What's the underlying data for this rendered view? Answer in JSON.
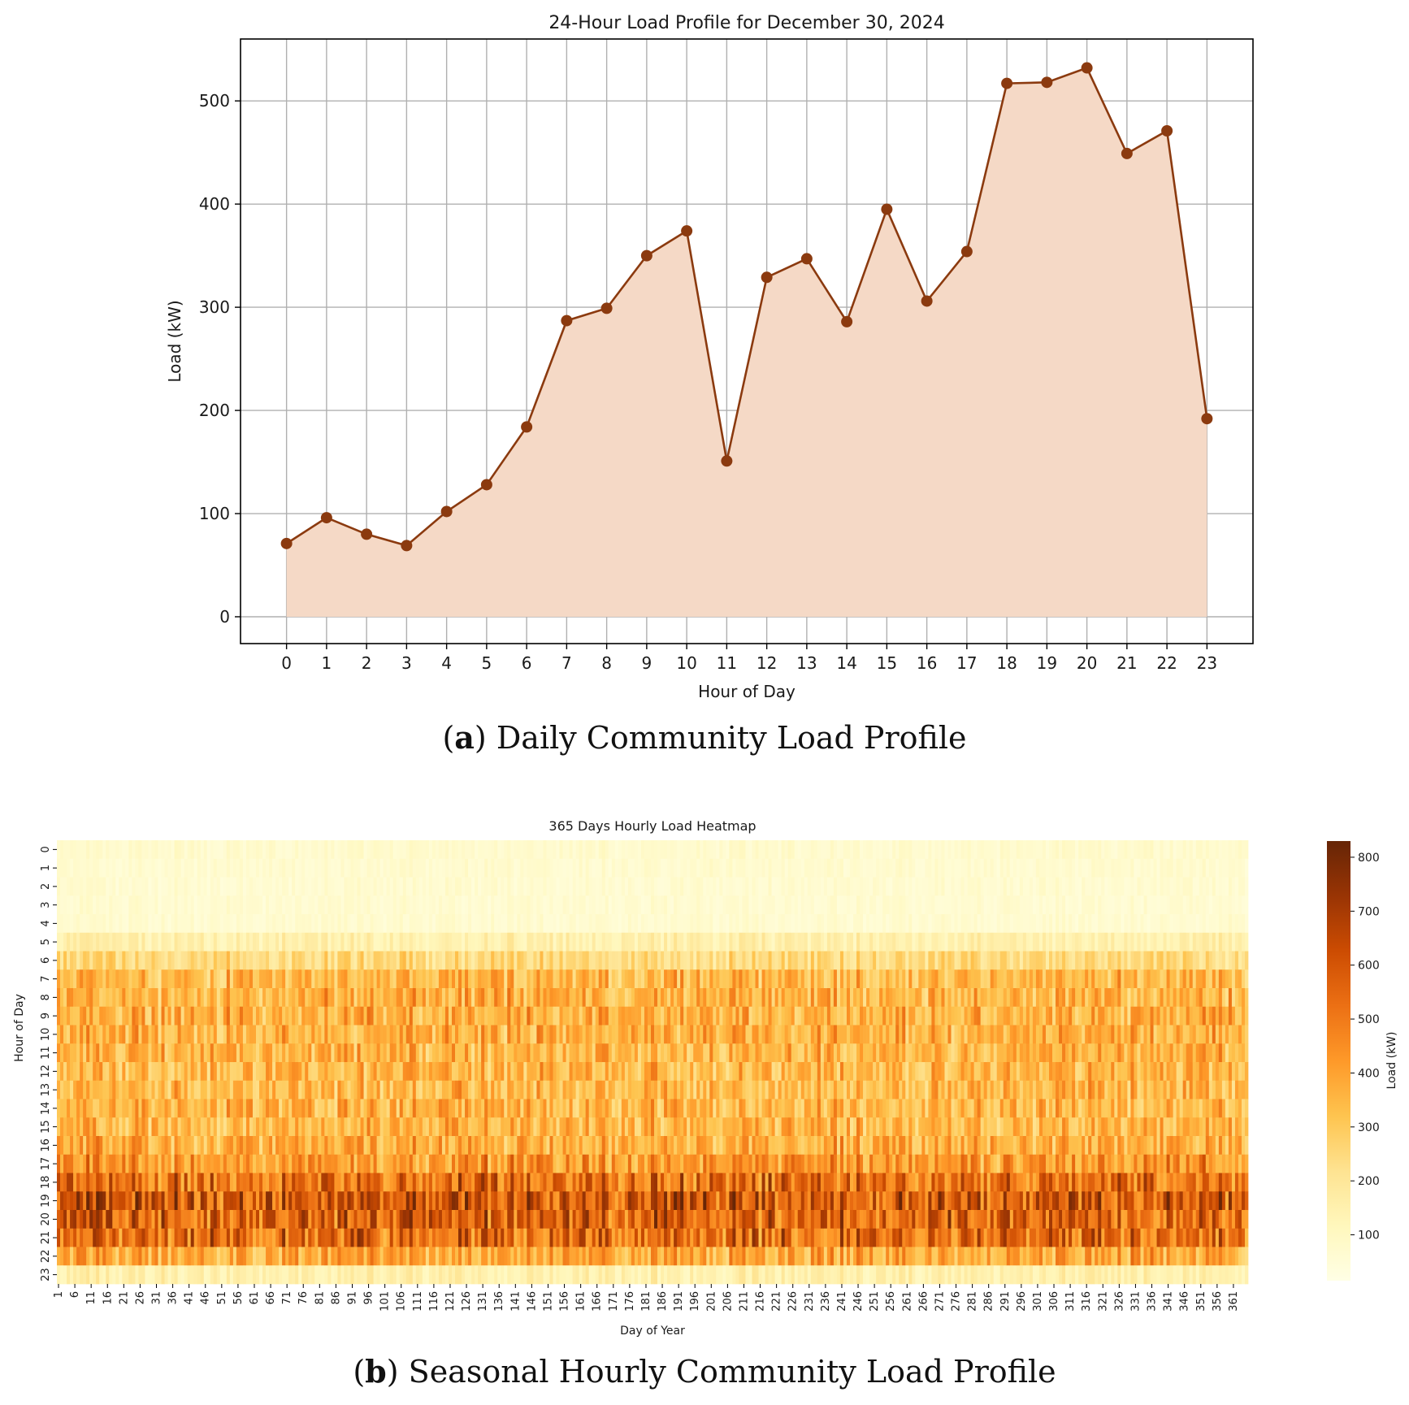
{
  "captions": {
    "a_letter": "a",
    "a_text": " Daily Community Load Profile",
    "b_letter": "b",
    "b_text": " Seasonal Hourly Community Load Profile"
  },
  "chart_data": [
    {
      "type": "area",
      "title": "24-Hour Load Profile for December 30, 2024",
      "xlabel": "Hour of Day",
      "ylabel": "Load (kW)",
      "x": [
        0,
        1,
        2,
        3,
        4,
        5,
        6,
        7,
        8,
        9,
        10,
        11,
        12,
        13,
        14,
        15,
        16,
        17,
        18,
        19,
        20,
        21,
        22,
        23
      ],
      "values": [
        71,
        96,
        80,
        69,
        102,
        128,
        184,
        287,
        299,
        350,
        374,
        151,
        329,
        347,
        286,
        395,
        306,
        354,
        517,
        518,
        532,
        449,
        471,
        192
      ],
      "xlim": [
        -1.15,
        24.15
      ],
      "ylim": [
        -26,
        560
      ],
      "yticks": [
        0,
        100,
        200,
        300,
        400,
        500
      ],
      "grid": true,
      "colors": {
        "line": "#8b3a0f",
        "marker": "#8b3a0f",
        "fill": "#f5d9c6"
      }
    },
    {
      "type": "heatmap",
      "title": "365 Days Hourly Load Heatmap",
      "xlabel": "Day of Year",
      "ylabel": "Hour of Day",
      "colorbar_label": "Load (kW)",
      "n_days": 365,
      "n_hours": 24,
      "x_tick_step": 5,
      "colorbar_ticks": [
        100,
        200,
        300,
        400,
        500,
        600,
        700,
        800
      ],
      "value_range": [
        15,
        830
      ],
      "colormap": "YlOrBr",
      "hourly_mean": [
        75,
        70,
        68,
        66,
        68,
        150,
        240,
        340,
        360,
        365,
        360,
        350,
        345,
        340,
        350,
        345,
        370,
        420,
        520,
        580,
        560,
        530,
        380,
        150
      ],
      "daily_load_note": "",
      "colors": {
        "low": "#ffffe5",
        "high": "#662506"
      }
    }
  ]
}
